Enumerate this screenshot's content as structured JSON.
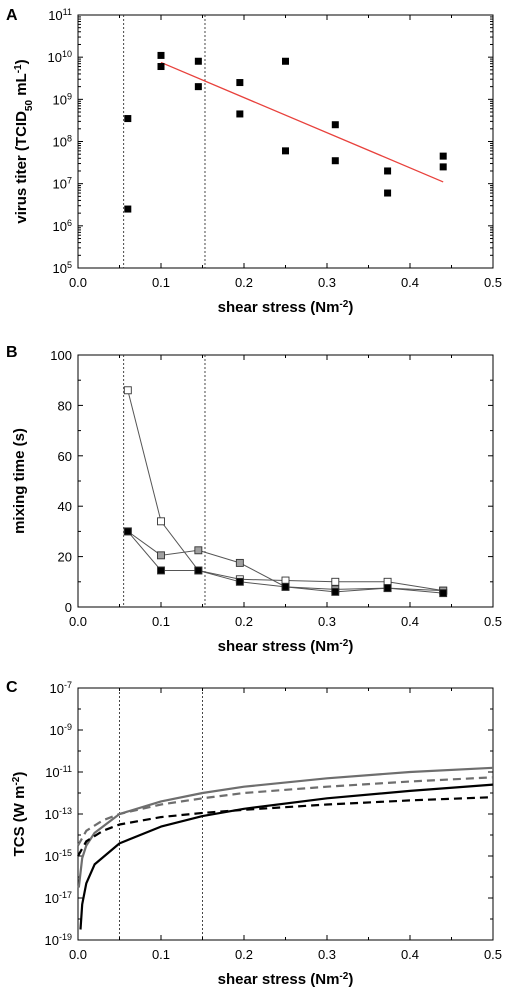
{
  "chart_data": [
    {
      "panel": "A",
      "type": "scatter",
      "xlabel": "shear stress (Nm-2)",
      "xlabel_parts": {
        "main": "shear stress (Nm",
        "sup": "-2",
        "close": ")"
      },
      "ylabel": "virus titer (TCID50 mL-1)",
      "ylabel_parts": {
        "main": "virus titer (TCID",
        "sub": "50",
        "mid": " mL",
        "sup": "-1",
        "close": ")"
      },
      "xlim": [
        0.0,
        0.5
      ],
      "ylim_exp": [
        5,
        11
      ],
      "yscale": "log",
      "x_ticks": [
        "0.0",
        "0.1",
        "0.2",
        "0.3",
        "0.4",
        "0.5"
      ],
      "y_tick_exponents": [
        "5",
        "6",
        "7",
        "8",
        "9",
        "10",
        "11"
      ],
      "y_tick_base": "10",
      "vlines": [
        0.055,
        0.153
      ],
      "marker_color": "#000000",
      "points": [
        {
          "x": 0.06,
          "y": 350000000.0
        },
        {
          "x": 0.06,
          "y": 2500000.0
        },
        {
          "x": 0.1,
          "y": 11000000000.0
        },
        {
          "x": 0.1,
          "y": 6000000000.0
        },
        {
          "x": 0.145,
          "y": 8000000000.0
        },
        {
          "x": 0.145,
          "y": 2000000000.0
        },
        {
          "x": 0.195,
          "y": 2500000000.0
        },
        {
          "x": 0.195,
          "y": 450000000.0
        },
        {
          "x": 0.25,
          "y": 8000000000.0
        },
        {
          "x": 0.25,
          "y": 60000000.0
        },
        {
          "x": 0.31,
          "y": 250000000.0
        },
        {
          "x": 0.31,
          "y": 35000000.0
        },
        {
          "x": 0.373,
          "y": 20000000.0
        },
        {
          "x": 0.373,
          "y": 6000000.0
        },
        {
          "x": 0.44,
          "y": 45000000.0
        },
        {
          "x": 0.44,
          "y": 25000000.0
        }
      ],
      "fit_line": {
        "color": "#e8413c",
        "x": [
          0.1,
          0.44
        ],
        "y": [
          7500000000.0,
          11000000.0
        ]
      }
    },
    {
      "panel": "B",
      "type": "line",
      "xlabel": "shear stress (Nm-2)",
      "xlabel_parts": {
        "main": "shear stress (Nm",
        "sup": "-2",
        "close": ")"
      },
      "ylabel": "mixing time (s)",
      "xlim": [
        0.0,
        0.5
      ],
      "ylim": [
        0,
        100
      ],
      "x_ticks": [
        "0.0",
        "0.1",
        "0.2",
        "0.3",
        "0.4",
        "0.5"
      ],
      "y_ticks": [
        "0",
        "20",
        "40",
        "60",
        "80",
        "100"
      ],
      "vlines": [
        0.055,
        0.153
      ],
      "series": [
        {
          "marker_fill": "#ffffff",
          "line_color": "#555555",
          "x": [
            0.06,
            0.1,
            0.145,
            0.195,
            0.25,
            0.31,
            0.373,
            0.44
          ],
          "y": [
            86,
            34,
            14.5,
            11,
            10.5,
            10,
            10,
            6.5
          ]
        },
        {
          "marker_fill": "#a0a0a0",
          "line_color": "#555555",
          "x": [
            0.06,
            0.1,
            0.145,
            0.195,
            0.25,
            0.31,
            0.373,
            0.44
          ],
          "y": [
            30,
            20.5,
            22.5,
            17.5,
            8,
            7,
            7.5,
            6.5
          ]
        },
        {
          "marker_fill": "#000000",
          "line_color": "#555555",
          "x": [
            0.06,
            0.1,
            0.145,
            0.195,
            0.25,
            0.31,
            0.373,
            0.44
          ],
          "y": [
            30,
            14.5,
            14.5,
            10,
            8,
            6,
            7.5,
            5.5
          ]
        }
      ]
    },
    {
      "panel": "C",
      "type": "line",
      "xlabel": "shear stress (Nm-2)",
      "xlabel_parts": {
        "main": "shear stress (Nm",
        "sup": "-2",
        "close": ")"
      },
      "ylabel": "TCS (W m-2)",
      "ylabel_parts": {
        "main": "TCS (W m",
        "sup": "-2",
        "close": ")"
      },
      "xlim": [
        0.0,
        0.5
      ],
      "ylim_exp": [
        -19,
        -7
      ],
      "yscale": "log",
      "x_ticks": [
        "0.0",
        "0.1",
        "0.2",
        "0.3",
        "0.4",
        "0.5"
      ],
      "y_tick_exponents": [
        "-19",
        "-17",
        "-15",
        "-13",
        "-11",
        "-9",
        "-7"
      ],
      "y_tick_base": "10",
      "vlines": [
        0.05,
        0.15
      ],
      "series": [
        {
          "color": "#6e6e6e",
          "dash": "solid",
          "x": [
            0.001,
            0.005,
            0.01,
            0.02,
            0.05,
            0.1,
            0.15,
            0.2,
            0.3,
            0.4,
            0.5
          ],
          "log10_y": [
            -16.5,
            -15.1,
            -14.5,
            -13.9,
            -13.0,
            -12.4,
            -12.0,
            -11.7,
            -11.3,
            -11.0,
            -10.8
          ]
        },
        {
          "color": "#6e6e6e",
          "dash": "dashed",
          "x": [
            0.0,
            0.01,
            0.03,
            0.05,
            0.1,
            0.15,
            0.2,
            0.3,
            0.4,
            0.5
          ],
          "log10_y": [
            -14.5,
            -13.8,
            -13.3,
            -13.0,
            -12.55,
            -12.25,
            -12.0,
            -11.7,
            -11.45,
            -11.25
          ]
        },
        {
          "color": "#000000",
          "dash": "solid",
          "x": [
            0.003,
            0.005,
            0.01,
            0.02,
            0.05,
            0.1,
            0.15,
            0.2,
            0.3,
            0.4,
            0.5
          ],
          "log10_y": [
            -18.5,
            -17.3,
            -16.3,
            -15.4,
            -14.4,
            -13.6,
            -13.1,
            -12.75,
            -12.25,
            -11.9,
            -11.6
          ]
        },
        {
          "color": "#000000",
          "dash": "dashed",
          "x": [
            0.0,
            0.01,
            0.03,
            0.05,
            0.1,
            0.15,
            0.2,
            0.3,
            0.4,
            0.5
          ],
          "log10_y": [
            -15.0,
            -14.3,
            -13.8,
            -13.5,
            -13.15,
            -12.95,
            -12.8,
            -12.55,
            -12.35,
            -12.2
          ]
        }
      ]
    }
  ]
}
